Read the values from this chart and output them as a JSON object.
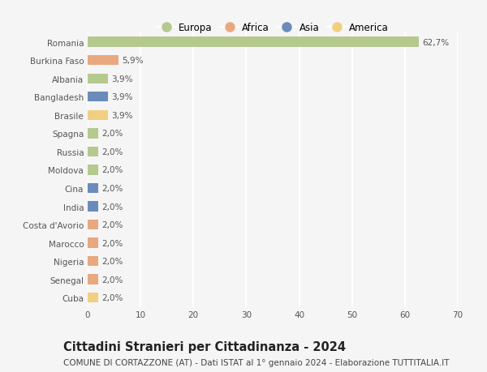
{
  "countries": [
    "Romania",
    "Burkina Faso",
    "Albania",
    "Bangladesh",
    "Brasile",
    "Spagna",
    "Russia",
    "Moldova",
    "Cina",
    "India",
    "Costa d'Avorio",
    "Marocco",
    "Nigeria",
    "Senegal",
    "Cuba"
  ],
  "values": [
    62.7,
    5.9,
    3.9,
    3.9,
    3.9,
    2.0,
    2.0,
    2.0,
    2.0,
    2.0,
    2.0,
    2.0,
    2.0,
    2.0,
    2.0
  ],
  "labels": [
    "62,7%",
    "5,9%",
    "3,9%",
    "3,9%",
    "3,9%",
    "2,0%",
    "2,0%",
    "2,0%",
    "2,0%",
    "2,0%",
    "2,0%",
    "2,0%",
    "2,0%",
    "2,0%",
    "2,0%"
  ],
  "continents": [
    "Europa",
    "Africa",
    "Europa",
    "Asia",
    "America",
    "Europa",
    "Europa",
    "Europa",
    "Asia",
    "Asia",
    "Africa",
    "Africa",
    "Africa",
    "Africa",
    "America"
  ],
  "continent_colors": {
    "Europa": "#b5c98e",
    "Africa": "#e8a97e",
    "Asia": "#6b8cba",
    "America": "#f0d080"
  },
  "legend_entries": [
    "Europa",
    "Africa",
    "Asia",
    "America"
  ],
  "legend_colors": [
    "#b5c98e",
    "#e8a97e",
    "#6b8cba",
    "#f0d080"
  ],
  "title": "Cittadini Stranieri per Cittadinanza - 2024",
  "subtitle": "COMUNE DI CORTAZZONE (AT) - Dati ISTAT al 1° gennaio 2024 - Elaborazione TUTTITALIA.IT",
  "xlim": [
    0,
    70
  ],
  "xticks": [
    0,
    10,
    20,
    30,
    40,
    50,
    60,
    70
  ],
  "background_color": "#f5f5f5",
  "grid_color": "#ffffff",
  "bar_height": 0.55,
  "title_fontsize": 10.5,
  "subtitle_fontsize": 7.5,
  "tick_fontsize": 7.5,
  "label_fontsize": 7.5,
  "legend_fontsize": 8.5
}
